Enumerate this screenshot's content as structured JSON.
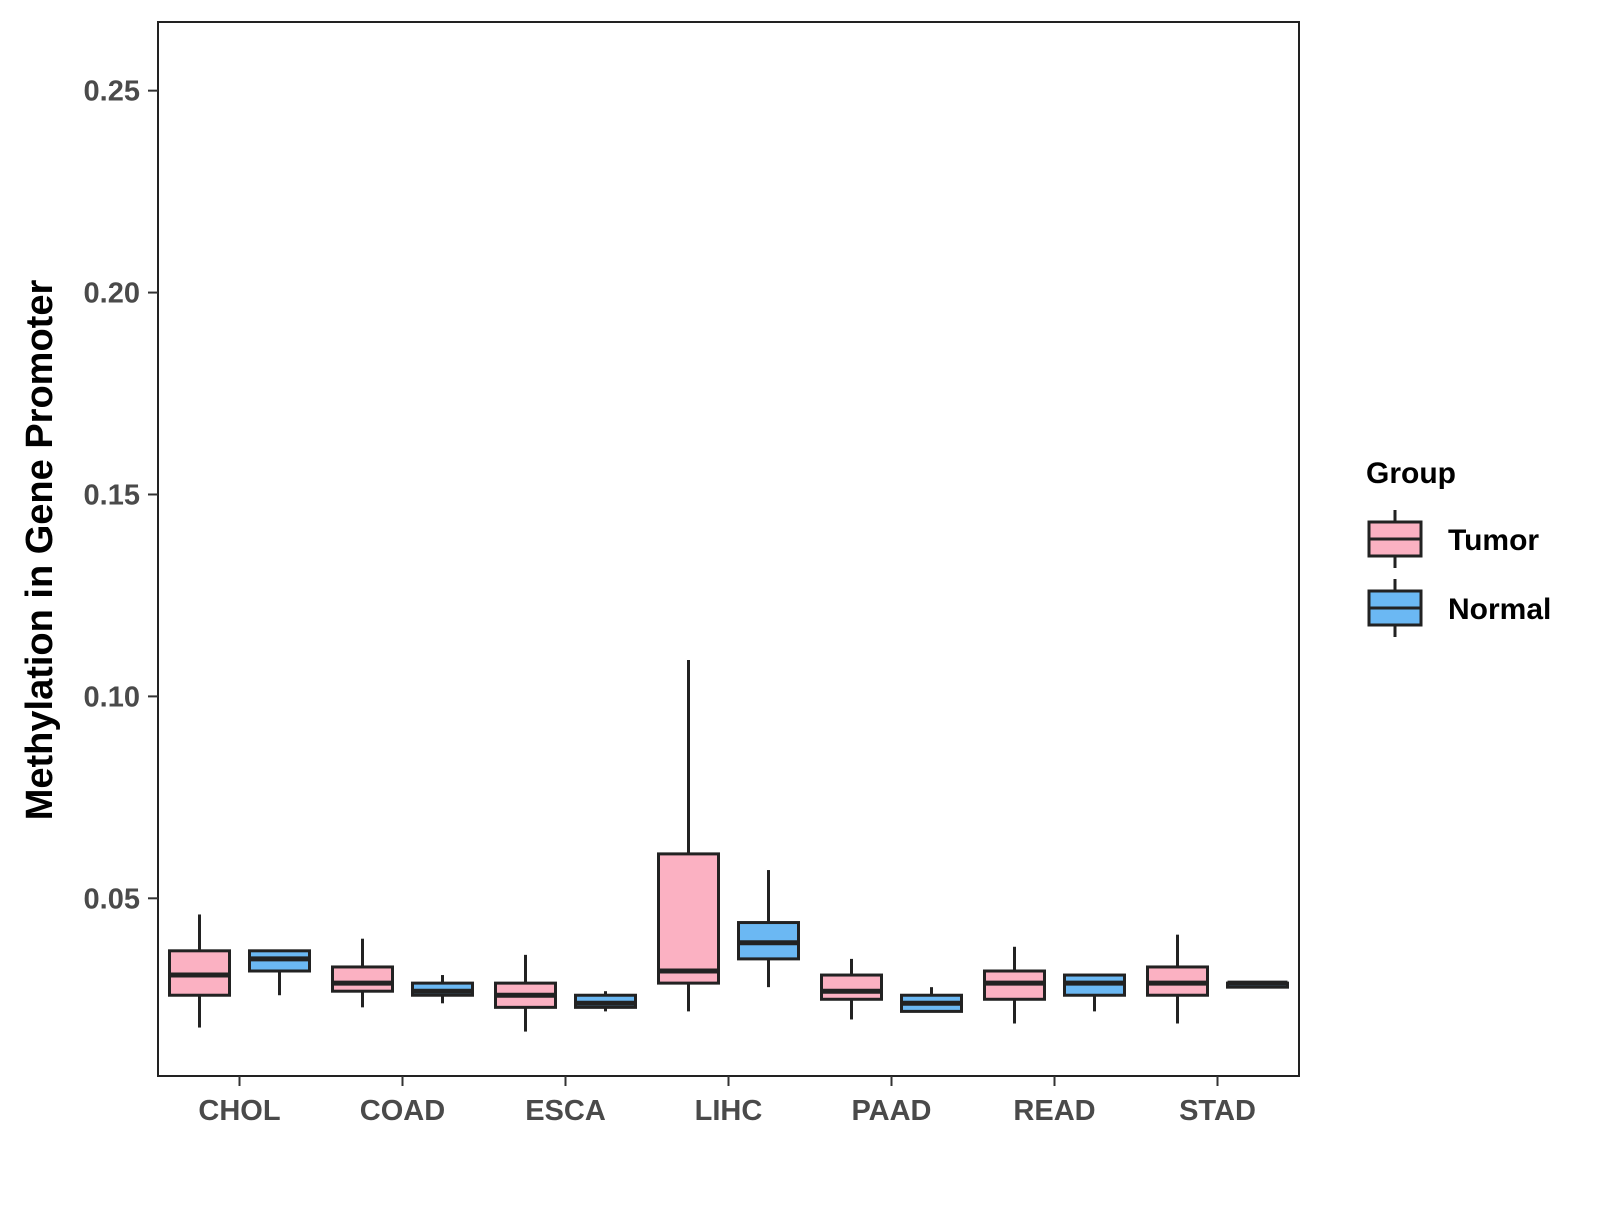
{
  "chart_data": {
    "type": "boxplot",
    "title": "",
    "xlabel": "",
    "ylabel": "Methylation in Gene Promoter",
    "ylim": [
      0.006,
      0.267
    ],
    "yticks": [
      "0.05",
      "0.10",
      "0.15",
      "0.20",
      "0.25"
    ],
    "grid": false,
    "categories": [
      "CHOL",
      "COAD",
      "ESCA",
      "LIHC",
      "PAAD",
      "READ",
      "STAD"
    ],
    "legend": {
      "title": "Group",
      "position": "right"
    },
    "series": [
      {
        "name": "Tumor",
        "color": "#FBB1C2",
        "boxes": [
          {
            "category": "CHOL",
            "min": 0.018,
            "q1": 0.026,
            "median": 0.031,
            "q3": 0.037,
            "max": 0.046
          },
          {
            "category": "COAD",
            "min": 0.023,
            "q1": 0.027,
            "median": 0.029,
            "q3": 0.033,
            "max": 0.04
          },
          {
            "category": "ESCA",
            "min": 0.017,
            "q1": 0.023,
            "median": 0.026,
            "q3": 0.029,
            "max": 0.036
          },
          {
            "category": "LIHC",
            "min": 0.022,
            "q1": 0.029,
            "median": 0.032,
            "q3": 0.061,
            "max": 0.109
          },
          {
            "category": "PAAD",
            "min": 0.02,
            "q1": 0.025,
            "median": 0.027,
            "q3": 0.031,
            "max": 0.035
          },
          {
            "category": "READ",
            "min": 0.019,
            "q1": 0.025,
            "median": 0.029,
            "q3": 0.032,
            "max": 0.038
          },
          {
            "category": "STAD",
            "min": 0.019,
            "q1": 0.026,
            "median": 0.029,
            "q3": 0.033,
            "max": 0.041
          }
        ]
      },
      {
        "name": "Normal",
        "color": "#6BB8F3",
        "boxes": [
          {
            "category": "CHOL",
            "min": 0.026,
            "q1": 0.032,
            "median": 0.035,
            "q3": 0.037,
            "max": 0.037
          },
          {
            "category": "COAD",
            "min": 0.024,
            "q1": 0.026,
            "median": 0.027,
            "q3": 0.029,
            "max": 0.031
          },
          {
            "category": "ESCA",
            "min": 0.022,
            "q1": 0.023,
            "median": 0.024,
            "q3": 0.026,
            "max": 0.027
          },
          {
            "category": "LIHC",
            "min": 0.028,
            "q1": 0.035,
            "median": 0.039,
            "q3": 0.044,
            "max": 0.057
          },
          {
            "category": "PAAD",
            "min": 0.022,
            "q1": 0.022,
            "median": 0.024,
            "q3": 0.026,
            "max": 0.028
          },
          {
            "category": "READ",
            "min": 0.022,
            "q1": 0.026,
            "median": 0.029,
            "q3": 0.031,
            "max": 0.031
          },
          {
            "category": "STAD",
            "min": 0.028,
            "q1": 0.028,
            "median": 0.029,
            "q3": 0.029,
            "max": 0.029
          }
        ]
      }
    ]
  }
}
